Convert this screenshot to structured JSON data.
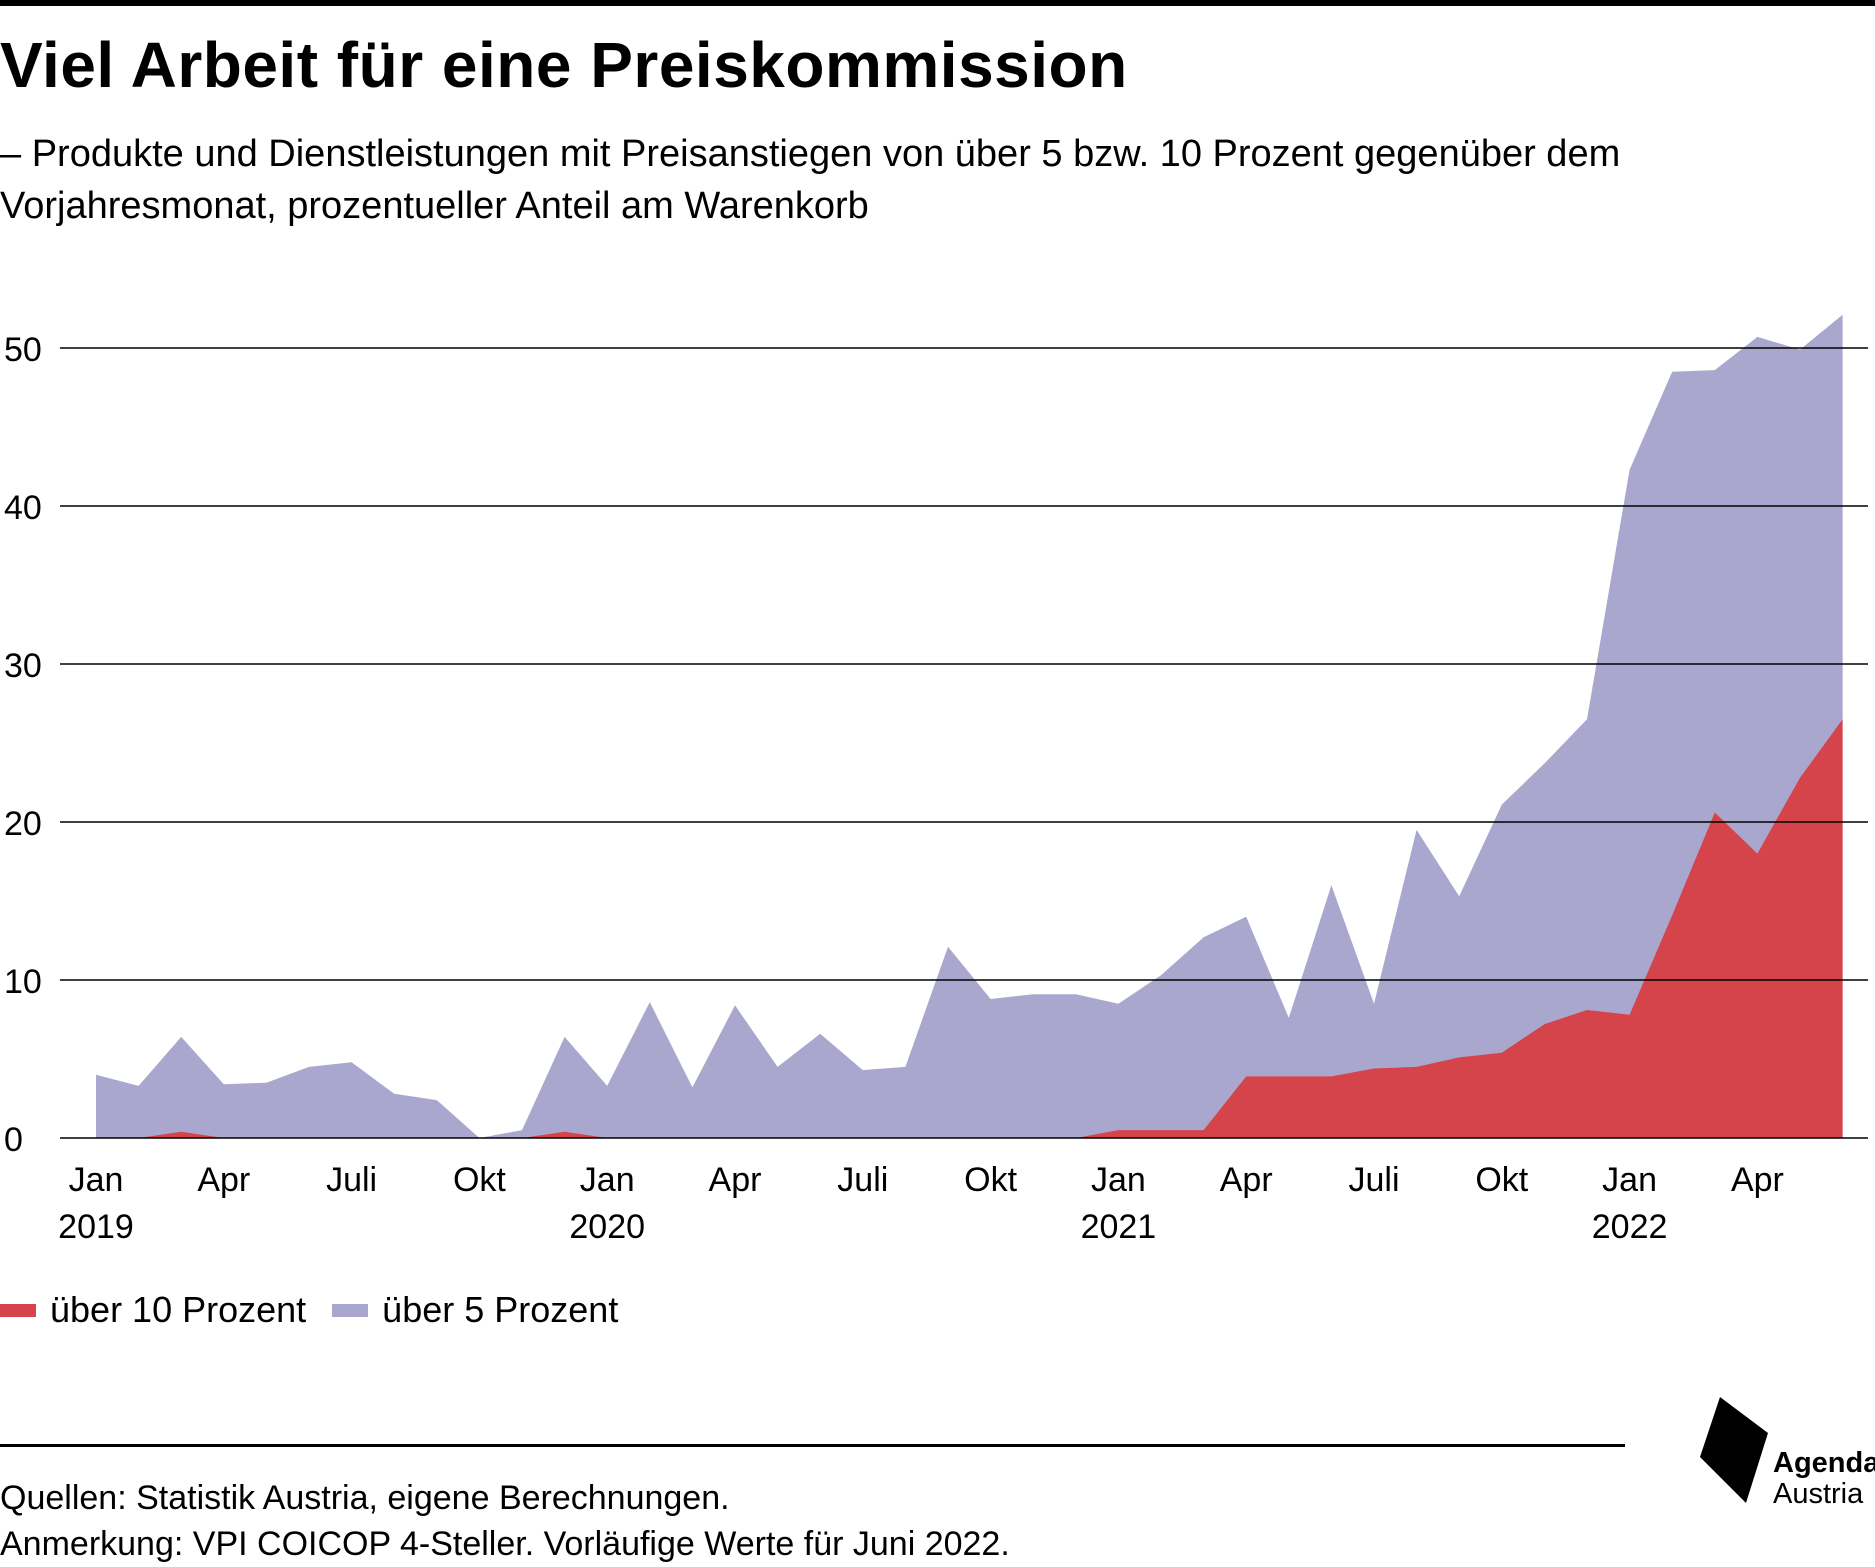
{
  "title": "Viel Arbeit für eine Preiskommission",
  "subtitle": "– Produkte und Dienstleistungen mit Preisanstiegen von über 5 bzw. 10 Prozent gegenüber dem Vorjahresmonat, prozentueller Anteil am Warenkorb",
  "colors": {
    "red": "#d5444b",
    "purple": "#a9a7ce",
    "grid": "#000000"
  },
  "chart_data": {
    "type": "area",
    "x": [
      "2019-01",
      "2019-02",
      "2019-03",
      "2019-04",
      "2019-05",
      "2019-06",
      "2019-07",
      "2019-08",
      "2019-09",
      "2019-10",
      "2019-11",
      "2019-12",
      "2020-01",
      "2020-02",
      "2020-03",
      "2020-04",
      "2020-05",
      "2020-06",
      "2020-07",
      "2020-08",
      "2020-09",
      "2020-10",
      "2020-11",
      "2020-12",
      "2021-01",
      "2021-02",
      "2021-03",
      "2021-04",
      "2021-05",
      "2021-06",
      "2021-07",
      "2021-08",
      "2021-09",
      "2021-10",
      "2021-11",
      "2021-12",
      "2022-01",
      "2022-02",
      "2022-03",
      "2022-04",
      "2022-05",
      "2022-06"
    ],
    "x_ticks": [
      {
        "label": "Jan",
        "year": "2019",
        "month": "2019-01"
      },
      {
        "label": "Apr",
        "year": "",
        "month": "2019-04"
      },
      {
        "label": "Juli",
        "year": "",
        "month": "2019-07"
      },
      {
        "label": "Okt",
        "year": "",
        "month": "2019-10"
      },
      {
        "label": "Jan",
        "year": "2020",
        "month": "2020-01"
      },
      {
        "label": "Apr",
        "year": "",
        "month": "2020-04"
      },
      {
        "label": "Juli",
        "year": "",
        "month": "2020-07"
      },
      {
        "label": "Okt",
        "year": "",
        "month": "2020-10"
      },
      {
        "label": "Jan",
        "year": "2021",
        "month": "2021-01"
      },
      {
        "label": "Apr",
        "year": "",
        "month": "2021-04"
      },
      {
        "label": "Juli",
        "year": "",
        "month": "2021-07"
      },
      {
        "label": "Okt",
        "year": "",
        "month": "2021-10"
      },
      {
        "label": "Jan",
        "year": "2022",
        "month": "2022-01"
      },
      {
        "label": "Apr",
        "year": "",
        "month": "2022-04"
      }
    ],
    "series": [
      {
        "name": "über 5 Prozent",
        "color": "#a9a7ce",
        "values": [
          4.0,
          3.3,
          6.4,
          3.4,
          3.5,
          4.5,
          4.8,
          2.8,
          2.4,
          0.0,
          0.5,
          6.4,
          3.3,
          8.6,
          3.2,
          8.4,
          4.5,
          6.6,
          4.3,
          4.5,
          12.1,
          8.8,
          9.1,
          9.1,
          8.5,
          10.3,
          12.7,
          14.0,
          7.6,
          16.0,
          8.5,
          19.5,
          15.3,
          21.1,
          23.7,
          26.5,
          42.3,
          48.5,
          48.6,
          50.7,
          49.9,
          52.1
        ]
      },
      {
        "name": "über 10 Prozent",
        "color": "#d5444b",
        "values": [
          0,
          0,
          0.4,
          0,
          0,
          0,
          0,
          0,
          0,
          0,
          0,
          0.4,
          0,
          0,
          0,
          0,
          0,
          0,
          0,
          0,
          0,
          0,
          0,
          0,
          0.5,
          0.5,
          0.5,
          3.9,
          3.9,
          3.9,
          4.4,
          4.5,
          5.1,
          5.4,
          7.2,
          8.1,
          7.8,
          14.1,
          20.6,
          18.0,
          22.8,
          26.5
        ]
      }
    ],
    "y_ticks": [
      0,
      10,
      20,
      30,
      40,
      50
    ],
    "ylim": [
      0,
      54
    ],
    "legend_position": "bottom-left",
    "grid": true
  },
  "legend": [
    {
      "label": "über 10 Prozent",
      "color": "#d5444b"
    },
    {
      "label": "über 5 Prozent",
      "color": "#a9a7ce"
    }
  ],
  "footer": {
    "sources": "Quellen: Statistik Austria, eigene Berechnungen.",
    "note": "Anmerkung: VPI COICOP 4-Steller. Vorläufige Werte für Juni 2022."
  },
  "logo": {
    "line1": "Agenda",
    "line2": "Austria",
    "icon": "agenda-austria-logo-icon"
  }
}
